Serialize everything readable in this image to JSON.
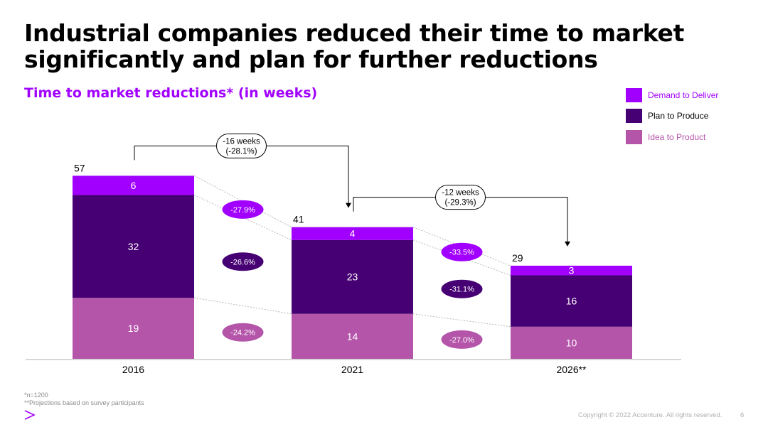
{
  "title": {
    "line1": "Industrial companies reduced their time to market",
    "line2": "significantly and plan for further reductions"
  },
  "subtitle": "Time to market reductions* (in weeks)",
  "legend": [
    {
      "label": "Demand to Deliver",
      "color": "#a100ff",
      "text_color": "#a100ff"
    },
    {
      "label": "Plan to Produce",
      "color": "#460073",
      "text_color": "#000000"
    },
    {
      "label": "Idea to Product",
      "color": "#b455aa",
      "text_color": "#b455aa"
    }
  ],
  "chart_data": {
    "type": "bar",
    "stacked": true,
    "categories": [
      "2016",
      "2021",
      "2026**"
    ],
    "series": [
      {
        "name": "Idea to Product",
        "values": [
          19,
          14,
          10
        ],
        "color": "#b455aa"
      },
      {
        "name": "Plan to Produce",
        "values": [
          32,
          23,
          16
        ],
        "color": "#460073"
      },
      {
        "name": "Demand to Deliver",
        "values": [
          6,
          4,
          3
        ],
        "color": "#a100ff"
      }
    ],
    "totals": [
      57,
      41,
      29
    ],
    "segment_change_labels": [
      {
        "between": [
          "2016",
          "2021"
        ],
        "labels": [
          "-24.2%",
          "-26.6%",
          "-27.9%"
        ]
      },
      {
        "between": [
          "2021",
          "2026**"
        ],
        "labels": [
          "-27.0%",
          "-31.1%",
          "-33.5%"
        ]
      }
    ],
    "total_change_callouts": [
      {
        "from": "2016",
        "to": "2021",
        "line1": "-16 weeks",
        "line2": "(-28.1%)"
      },
      {
        "from": "2021",
        "to": "2026**",
        "line1": "-12 weeks",
        "line2": "(-29.3%)"
      }
    ],
    "bubble_colors": [
      "#b455aa",
      "#460073",
      "#a100ff"
    ],
    "grid": false
  },
  "footnotes": [
    "*n=1200",
    "**Projections based on survey participants"
  ],
  "copyright": "Copyright © 2022 Accenture. All rights reserved.",
  "page_number": "6",
  "logo_icon": "accenture-chevron-icon"
}
